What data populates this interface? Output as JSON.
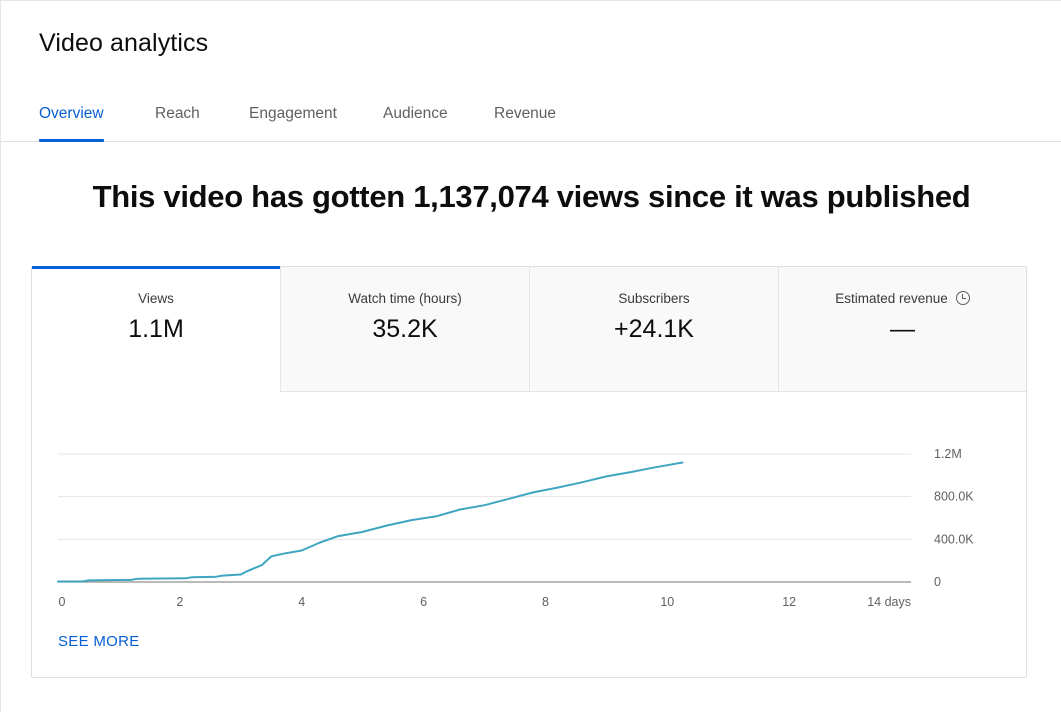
{
  "page": {
    "title": "Video analytics"
  },
  "tabs": [
    {
      "label": "Overview",
      "active": true
    },
    {
      "label": "Reach",
      "active": false
    },
    {
      "label": "Engagement",
      "active": false
    },
    {
      "label": "Audience",
      "active": false
    },
    {
      "label": "Revenue",
      "active": false
    }
  ],
  "headline": "This video has gotten 1,137,074 views since it was published",
  "metrics": [
    {
      "label": "Views",
      "value": "1.1M",
      "active": true
    },
    {
      "label": "Watch time (hours)",
      "value": "35.2K",
      "active": false
    },
    {
      "label": "Subscribers",
      "value": "+24.1K",
      "active": false
    },
    {
      "label": "Estimated revenue",
      "value": "—",
      "active": false,
      "icon": "clock-icon"
    }
  ],
  "see_more": "SEE MORE",
  "colors": {
    "accent": "#065fd4",
    "line": "#3ea6c1"
  },
  "chart_data": {
    "type": "line",
    "title": "",
    "xlabel": "",
    "ylabel": "",
    "xlim": [
      0,
      14
    ],
    "ylim": [
      0,
      1200000
    ],
    "x_ticks": [
      "0",
      "2",
      "4",
      "6",
      "8",
      "10",
      "12",
      "14 days"
    ],
    "x_tick_values": [
      0,
      2,
      4,
      6,
      8,
      10,
      12,
      14
    ],
    "y_ticks": [
      "0",
      "400.0K",
      "800.0K",
      "1.2M"
    ],
    "y_tick_values": [
      0,
      400000,
      800000,
      1200000
    ],
    "grid": true,
    "series": [
      {
        "x": [
          0,
          0.4,
          0.5,
          1.2,
          1.3,
          2.1,
          2.2,
          2.6,
          2.7,
          3.0,
          3.1,
          3.35,
          3.5,
          3.7,
          4.0,
          4.3,
          4.6,
          5.0,
          5.4,
          5.8,
          6.2,
          6.6,
          7.0,
          7.4,
          7.8,
          8.2,
          8.6,
          9.0,
          9.4,
          9.8,
          10.0,
          10.25
        ],
        "y": [
          5000,
          5000,
          15000,
          20000,
          30000,
          35000,
          45000,
          50000,
          60000,
          70000,
          100000,
          160000,
          240000,
          265000,
          295000,
          370000,
          430000,
          470000,
          530000,
          580000,
          615000,
          680000,
          720000,
          780000,
          840000,
          885000,
          935000,
          990000,
          1030000,
          1075000,
          1095000,
          1120000
        ]
      }
    ]
  }
}
